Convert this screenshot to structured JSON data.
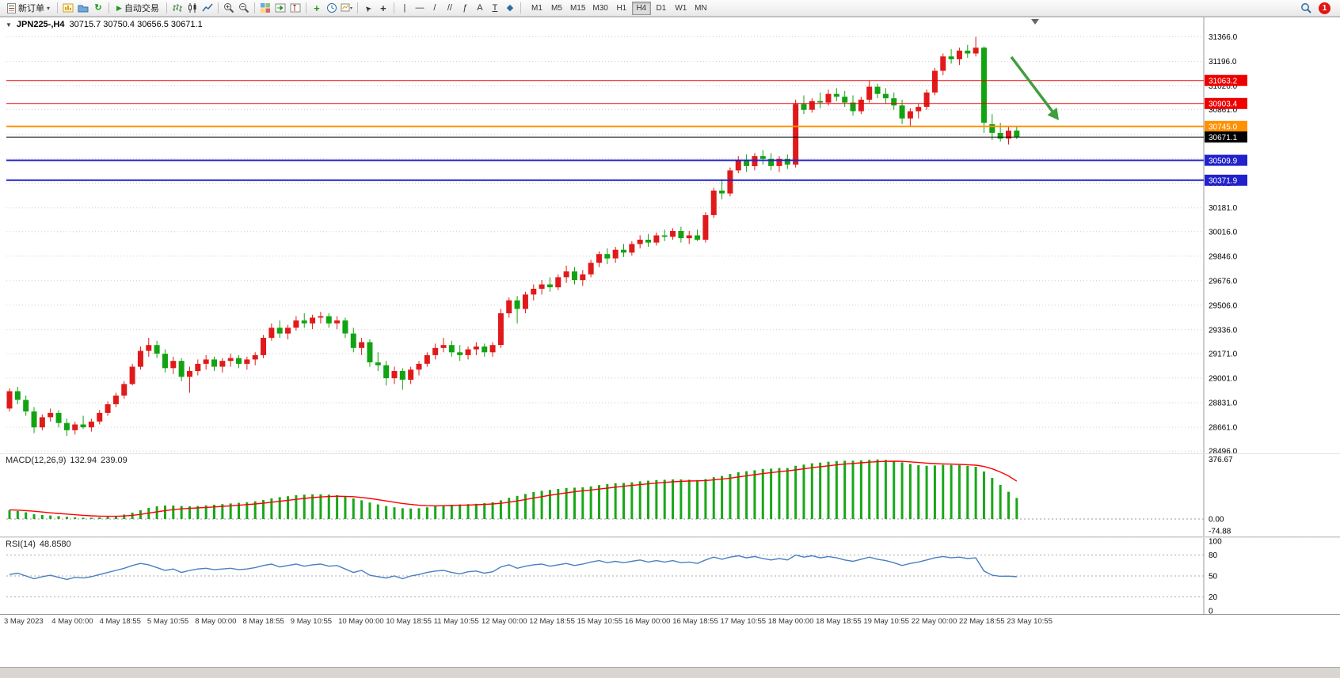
{
  "toolbar": {
    "new_order": "新订单",
    "autotrading": "自动交易",
    "timeframes": [
      "M1",
      "M5",
      "M15",
      "M30",
      "H1",
      "H4",
      "D1",
      "W1",
      "MN"
    ],
    "active_timeframe": "H4",
    "notification_badge": "1"
  },
  "icons": {
    "dropdown_arrow": "▾",
    "play": "▶",
    "refresh": "↻",
    "cursor": "➤",
    "crosshair": "+",
    "vline": "|",
    "hline": "—",
    "trendline": "/",
    "channel": "//",
    "fibonacci": "ƒ",
    "text_tool": "A",
    "label_tool": "T",
    "shapes": "◆",
    "indicators_plus": "+",
    "collapse_triangle": "▼"
  },
  "chart": {
    "symbol_period": "JPN225-,H4",
    "ohlc_text": "30715.7 30750.4 30656.5 30671.1",
    "price_axis_labels": [
      31366.0,
      31196.0,
      31026.0,
      30861.0,
      30691.0,
      30521.0,
      30351.0,
      30181.0,
      30016.0,
      29846.0,
      29676.0,
      29506.0,
      29336.0,
      29171.0,
      29001.0,
      28831.0,
      28661.0,
      28496.0
    ],
    "hlines": [
      {
        "price": 31063.2,
        "label": "31063.2",
        "color": "#ee0000",
        "width": 1
      },
      {
        "price": 30903.4,
        "label": "30903.4",
        "color": "#ee0000",
        "width": 1
      },
      {
        "price": 30745.0,
        "label": "30745.0",
        "color": "#ff9000",
        "width": 2
      },
      {
        "price": 30671.1,
        "label": "30671.1",
        "color": "#000000",
        "width": 1
      },
      {
        "price": 30509.9,
        "label": "30509.9",
        "color": "#2222cc",
        "width": 2
      },
      {
        "price": 30371.9,
        "label": "30371.9",
        "color": "#2222cc",
        "width": 2
      }
    ],
    "date_labels": [
      "3 May 2023",
      "4 May 00:00",
      "4 May 18:55",
      "5 May 10:55",
      "8 May 00:00",
      "8 May 18:55",
      "9 May 10:55",
      "10 May 00:00",
      "10 May 18:55",
      "11 May 10:55",
      "12 May 00:00",
      "12 May 18:55",
      "15 May 10:55",
      "16 May 00:00",
      "16 May 18:55",
      "17 May 10:55",
      "18 May 00:00",
      "18 May 18:55",
      "19 May 10:55",
      "22 May 00:00",
      "22 May 18:55",
      "23 May 10:55"
    ]
  },
  "macd": {
    "label": "MACD(12,26,9)",
    "value_main": "132.94",
    "value_signal": "239.09",
    "axis": [
      {
        "value": 376.67,
        "label": "376.67"
      },
      {
        "value": 0,
        "label": "0.00"
      },
      {
        "value": -74.88,
        "label": "-74.88"
      }
    ]
  },
  "rsi": {
    "label": "RSI(14)",
    "value": "48.8580",
    "axis_labels": [
      "100",
      "80",
      "50",
      "20",
      "0"
    ],
    "levels": [
      80,
      50,
      20
    ]
  },
  "colors": {
    "bull": "#e01a1a",
    "bear": "#12a312",
    "grid": "#cdcdcd",
    "macd_hist": "#18a818",
    "macd_signal": "#ff0000",
    "rsi_line": "#4a7fc1",
    "arrow": "#3f9e3f",
    "axis_line": "#9a9a9a"
  },
  "chart_data": {
    "type": "candlestick",
    "symbol": "JPN225-",
    "period": "H4",
    "price_range": [
      28496.0,
      31366.0
    ],
    "candles": [
      [
        28790,
        28930,
        28770,
        28910
      ],
      [
        28910,
        28940,
        28820,
        28850
      ],
      [
        28850,
        28880,
        28740,
        28770
      ],
      [
        28770,
        28800,
        28620,
        28660
      ],
      [
        28660,
        28750,
        28640,
        28730
      ],
      [
        28730,
        28790,
        28700,
        28760
      ],
      [
        28760,
        28780,
        28660,
        28690
      ],
      [
        28690,
        28720,
        28600,
        28640
      ],
      [
        28640,
        28700,
        28610,
        28680
      ],
      [
        28680,
        28740,
        28650,
        28660
      ],
      [
        28660,
        28720,
        28630,
        28700
      ],
      [
        28700,
        28780,
        28680,
        28760
      ],
      [
        28760,
        28840,
        28740,
        28820
      ],
      [
        28820,
        28900,
        28800,
        28880
      ],
      [
        28880,
        28980,
        28860,
        28960
      ],
      [
        28960,
        29100,
        28950,
        29080
      ],
      [
        29080,
        29220,
        29060,
        29190
      ],
      [
        29190,
        29280,
        29150,
        29230
      ],
      [
        29230,
        29260,
        29140,
        29170
      ],
      [
        29170,
        29200,
        29040,
        29070
      ],
      [
        29070,
        29150,
        29030,
        29120
      ],
      [
        29120,
        29140,
        28980,
        29010
      ],
      [
        29010,
        29080,
        28900,
        29050
      ],
      [
        29050,
        29130,
        29020,
        29100
      ],
      [
        29100,
        29160,
        29060,
        29130
      ],
      [
        29130,
        29150,
        29050,
        29080
      ],
      [
        29080,
        29140,
        29040,
        29120
      ],
      [
        29120,
        29170,
        29080,
        29140
      ],
      [
        29140,
        29160,
        29070,
        29100
      ],
      [
        29100,
        29150,
        29060,
        29130
      ],
      [
        29130,
        29180,
        29090,
        29160
      ],
      [
        29160,
        29300,
        29140,
        29280
      ],
      [
        29280,
        29380,
        29260,
        29350
      ],
      [
        29350,
        29400,
        29280,
        29310
      ],
      [
        29310,
        29370,
        29270,
        29350
      ],
      [
        29350,
        29430,
        29330,
        29400
      ],
      [
        29400,
        29450,
        29350,
        29380
      ],
      [
        29380,
        29440,
        29340,
        29420
      ],
      [
        29420,
        29460,
        29380,
        29430
      ],
      [
        29430,
        29450,
        29350,
        29380
      ],
      [
        29380,
        29430,
        29340,
        29400
      ],
      [
        29400,
        29420,
        29280,
        29310
      ],
      [
        29310,
        29350,
        29180,
        29210
      ],
      [
        29210,
        29280,
        29160,
        29250
      ],
      [
        29250,
        29270,
        29080,
        29110
      ],
      [
        29110,
        29180,
        29050,
        29090
      ],
      [
        29090,
        29120,
        28950,
        29000
      ],
      [
        29000,
        29080,
        28960,
        29050
      ],
      [
        29050,
        29070,
        28920,
        28990
      ],
      [
        28990,
        29080,
        28960,
        29060
      ],
      [
        29060,
        29120,
        29020,
        29100
      ],
      [
        29100,
        29180,
        29080,
        29160
      ],
      [
        29160,
        29240,
        29130,
        29210
      ],
      [
        29210,
        29280,
        29180,
        29230
      ],
      [
        29230,
        29260,
        29150,
        29180
      ],
      [
        29180,
        29230,
        29120,
        29160
      ],
      [
        29160,
        29220,
        29130,
        29200
      ],
      [
        29200,
        29250,
        29160,
        29220
      ],
      [
        29220,
        29240,
        29150,
        29180
      ],
      [
        29180,
        29250,
        29150,
        29230
      ],
      [
        29230,
        29480,
        29210,
        29450
      ],
      [
        29450,
        29560,
        29420,
        29540
      ],
      [
        29540,
        29570,
        29380,
        29480
      ],
      [
        29480,
        29600,
        29450,
        29580
      ],
      [
        29580,
        29650,
        29540,
        29620
      ],
      [
        29620,
        29680,
        29580,
        29650
      ],
      [
        29650,
        29700,
        29600,
        29630
      ],
      [
        29630,
        29720,
        29610,
        29700
      ],
      [
        29700,
        29780,
        29660,
        29740
      ],
      [
        29740,
        29770,
        29650,
        29680
      ],
      [
        29680,
        29750,
        29640,
        29720
      ],
      [
        29720,
        29820,
        29700,
        29800
      ],
      [
        29800,
        29880,
        29770,
        29860
      ],
      [
        29860,
        29900,
        29790,
        29830
      ],
      [
        29830,
        29910,
        29800,
        29890
      ],
      [
        29890,
        29930,
        29840,
        29870
      ],
      [
        29870,
        29950,
        29850,
        29930
      ],
      [
        29930,
        29990,
        29900,
        29960
      ],
      [
        29960,
        30000,
        29910,
        29940
      ],
      [
        29940,
        30010,
        29920,
        29990
      ],
      [
        29990,
        30030,
        29950,
        29980
      ],
      [
        29980,
        30040,
        29960,
        30020
      ],
      [
        30020,
        30050,
        29940,
        29970
      ],
      [
        29970,
        30020,
        29930,
        29990
      ],
      [
        29990,
        30030,
        29950,
        29960
      ],
      [
        29960,
        30150,
        29940,
        30130
      ],
      [
        30130,
        30320,
        30110,
        30300
      ],
      [
        30300,
        30380,
        30240,
        30280
      ],
      [
        30280,
        30460,
        30260,
        30440
      ],
      [
        30440,
        30540,
        30420,
        30510
      ],
      [
        30510,
        30550,
        30430,
        30470
      ],
      [
        30470,
        30560,
        30440,
        30540
      ],
      [
        30540,
        30580,
        30480,
        30520
      ],
      [
        30520,
        30560,
        30440,
        30470
      ],
      [
        30470,
        30540,
        30430,
        30520
      ],
      [
        30520,
        30550,
        30450,
        30480
      ],
      [
        30480,
        30930,
        30460,
        30900
      ],
      [
        30900,
        30960,
        30830,
        30860
      ],
      [
        30860,
        30940,
        30840,
        30920
      ],
      [
        30920,
        30980,
        30870,
        30910
      ],
      [
        30910,
        31000,
        30890,
        30970
      ],
      [
        30970,
        31010,
        30920,
        30950
      ],
      [
        30950,
        30990,
        30880,
        30910
      ],
      [
        30910,
        30960,
        30820,
        30850
      ],
      [
        30850,
        30950,
        30830,
        30930
      ],
      [
        30930,
        31060,
        30910,
        31020
      ],
      [
        31020,
        31040,
        30940,
        30970
      ],
      [
        30970,
        31010,
        30900,
        30940
      ],
      [
        30940,
        30980,
        30860,
        30890
      ],
      [
        30890,
        30930,
        30760,
        30800
      ],
      [
        30800,
        30870,
        30740,
        30850
      ],
      [
        30850,
        30900,
        30800,
        30880
      ],
      [
        30880,
        31000,
        30860,
        30980
      ],
      [
        30980,
        31150,
        30960,
        31130
      ],
      [
        31130,
        31250,
        31100,
        31230
      ],
      [
        31230,
        31280,
        31180,
        31210
      ],
      [
        31210,
        31290,
        31170,
        31270
      ],
      [
        31270,
        31310,
        31220,
        31250
      ],
      [
        31250,
        31366,
        31230,
        31290
      ],
      [
        31290,
        31300,
        30700,
        30770
      ],
      [
        30760,
        30830,
        30650,
        30700
      ],
      [
        30700,
        30770,
        30640,
        30660
      ],
      [
        30660,
        30740,
        30620,
        30715
      ],
      [
        30715.7,
        30750.4,
        30656.5,
        30671.1
      ]
    ],
    "macd_hist": [
      55,
      50,
      42,
      30,
      25,
      22,
      18,
      14,
      10,
      8,
      8,
      10,
      14,
      20,
      28,
      40,
      55,
      70,
      80,
      85,
      85,
      82,
      80,
      82,
      86,
      90,
      94,
      98,
      102,
      106,
      112,
      120,
      130,
      138,
      144,
      150,
      154,
      156,
      156,
      154,
      150,
      142,
      130,
      118,
      104,
      92,
      82,
      74,
      68,
      66,
      68,
      74,
      80,
      86,
      90,
      92,
      94,
      96,
      100,
      106,
      118,
      134,
      146,
      158,
      170,
      178,
      184,
      190,
      196,
      198,
      200,
      206,
      214,
      220,
      226,
      228,
      232,
      238,
      242,
      246,
      248,
      250,
      250,
      248,
      246,
      252,
      264,
      272,
      284,
      296,
      302,
      308,
      316,
      318,
      322,
      322,
      336,
      344,
      352,
      356,
      362,
      366,
      368,
      368,
      370,
      374,
      376.67,
      374,
      368,
      358,
      348,
      340,
      336,
      338,
      342,
      342,
      340,
      336,
      330,
      300,
      260,
      215,
      172,
      132.94
    ],
    "macd_signal": [
      58,
      56,
      53,
      49,
      44,
      39,
      35,
      31,
      27,
      23,
      20,
      18,
      17,
      17,
      19,
      23,
      29,
      37,
      45,
      53,
      59,
      64,
      67,
      70,
      73,
      76,
      80,
      83,
      87,
      91,
      95,
      100,
      106,
      112,
      118,
      124,
      130,
      135,
      139,
      142,
      144,
      143,
      141,
      136,
      130,
      122,
      114,
      106,
      98,
      92,
      87,
      84,
      83,
      84,
      85,
      87,
      88,
      90,
      92,
      95,
      99,
      106,
      114,
      123,
      132,
      141,
      150,
      158,
      165,
      172,
      178,
      183,
      189,
      195,
      201,
      207,
      212,
      217,
      222,
      227,
      231,
      235,
      238,
      240,
      241,
      243,
      247,
      252,
      258,
      266,
      273,
      280,
      287,
      293,
      299,
      304,
      310,
      317,
      324,
      330,
      336,
      342,
      347,
      351,
      355,
      359,
      362,
      364,
      365,
      364,
      361,
      357,
      353,
      350,
      348,
      347,
      345,
      343,
      340,
      332,
      317,
      297,
      272,
      239.09
    ],
    "rsi": [
      52,
      54,
      50,
      46,
      49,
      51,
      48,
      45,
      48,
      47,
      49,
      52,
      55,
      58,
      61,
      65,
      68,
      66,
      62,
      58,
      60,
      55,
      58,
      60,
      61,
      59,
      60,
      61,
      59,
      60,
      62,
      65,
      67,
      63,
      65,
      67,
      64,
      66,
      67,
      64,
      65,
      60,
      55,
      58,
      51,
      49,
      47,
      50,
      46,
      50,
      52,
      55,
      57,
      58,
      55,
      53,
      56,
      57,
      54,
      56,
      63,
      66,
      61,
      64,
      66,
      67,
      64,
      66,
      68,
      65,
      67,
      70,
      72,
      69,
      71,
      69,
      71,
      73,
      70,
      72,
      70,
      72,
      69,
      70,
      68,
      73,
      77,
      74,
      77,
      79,
      76,
      78,
      75,
      73,
      75,
      73,
      80,
      77,
      79,
      76,
      78,
      76,
      73,
      71,
      74,
      77,
      74,
      72,
      69,
      65,
      68,
      70,
      73,
      76,
      78,
      76,
      77,
      75,
      76,
      57,
      51,
      49.5,
      49.8,
      48.86
    ]
  }
}
